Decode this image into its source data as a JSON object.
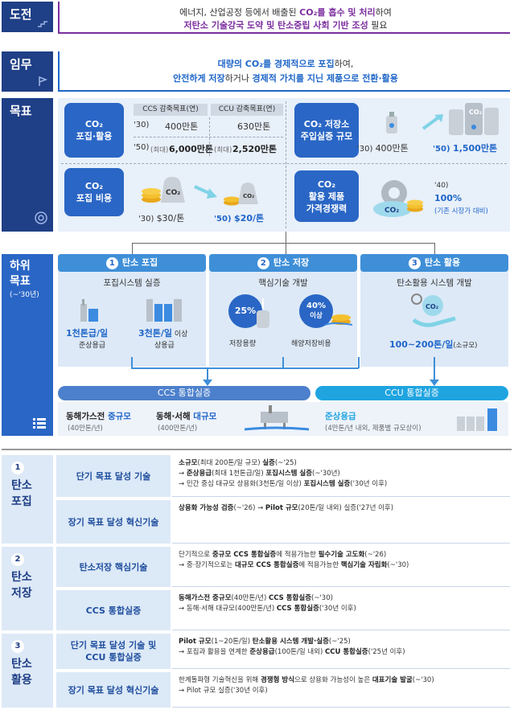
{
  "challenge": {
    "label": "도전",
    "line1_pre": "에너지, 산업공정 등에서 배출된 ",
    "line1_hl": "CO₂를 흡수 및 처리",
    "line1_post": "하여",
    "line2_hl": "저탄소 기술강국 도약 및 탄소중립 사회 기반 조성",
    "line2_post": " 필요"
  },
  "mission": {
    "label": "임무",
    "line1_hl": "대량의 CO₂를 경제적으로 포집",
    "line1_post": "하여,",
    "line2_a": "안전하게 저장",
    "line2_b": "하거나 ",
    "line2_c": "경제적 가치를 지닌 제품으로 전환·활용"
  },
  "goals": {
    "label": "목표",
    "capture": {
      "title1": "CO₂",
      "title2": "포집·활용",
      "ccs_header": "CCS 감축목표(연)",
      "ccu_header": "CCU 감축목표(연)",
      "row1_year": "'30)",
      "row1_ccs": "400만톤",
      "row1_ccu": "630만톤",
      "row2_year": "'50)",
      "row2_ccs_note": "(최대)",
      "row2_ccs": "6,000만톤",
      "row2_ccu_note": "(최대)",
      "row2_ccu": "2,520만톤"
    },
    "storage": {
      "title1": "CO₂ 저장소",
      "title2": "주입실증 규모",
      "v1_year": "'30)",
      "v1": "400만톤",
      "v2_year": "'50)",
      "v2": "1,500만톤"
    },
    "cost": {
      "title1": "CO₂",
      "title2": "포집 비용",
      "v1_year": "'30)",
      "v1": "$30/톤",
      "v2_year": "'50)",
      "v2": "$20/톤"
    },
    "product": {
      "title1": "CO₂",
      "title2": "활용 제품",
      "title3": "가격경쟁력",
      "year": "'40)",
      "value": "100%",
      "note": "(기존 시장가 대비)"
    },
    "co2_icon": "CO₂"
  },
  "subgoals": {
    "label1": "하위",
    "label2": "목표",
    "label3": "(~'30년)",
    "capture": {
      "num": "1",
      "title": "탄소 포집",
      "subtitle": "포집시스템 실증",
      "a_value": "1천톤급/일",
      "a_label": "준상용급",
      "b_value": "3천톤/일",
      "b_suffix": " 이상",
      "b_label": "상용급"
    },
    "storage": {
      "num": "2",
      "title": "탄소 저장",
      "subtitle": "핵심기술 개발",
      "a_value": "25%",
      "a_label": "저장용량",
      "b_value": "40%",
      "b_suffix": "이상",
      "b_label": "해양저장비용"
    },
    "utilization": {
      "num": "3",
      "title": "탄소 활용",
      "subtitle": "탄소활용 시스템 개발",
      "value": "100~200톤/일",
      "value_note": "(소규모)"
    },
    "ccs_demo": {
      "title": "CCS 통합실증",
      "a_pre": "동해가스전 ",
      "a_hl": "중규모",
      "a_note": "(40만톤/년)",
      "b_pre": "동해·서해 ",
      "b_hl": "대규모",
      "b_note": "(400만톤/년)"
    },
    "ccu_demo": {
      "title": "CCU 통합실증",
      "a_hl": "준상용급",
      "a_note": "(4만톤/년 내외, 제품별 규모상이)"
    }
  },
  "details": [
    {
      "num": "1",
      "name1": "탄소",
      "name2": "포집",
      "rows": [
        {
          "title": "단기 목표 달성 기술",
          "lines": [
            {
              "pre": "",
              "b1": "소규모",
              "mid": "(최대 200톤/일 규모) ",
              "b2": "실증",
              "post": "(~'25)"
            },
            {
              "pre": "→ ",
              "b1": "준상용급",
              "mid": "(최대 1천톤급/일) ",
              "b2": "포집시스템 실증",
              "post": "(~'30년)"
            },
            {
              "pre": "→ 민간 중심 대규모 상용화",
              "b1": "",
              "mid": "(3천톤/일 이상) ",
              "b2": "포집시스템 실증",
              "post": "('30년 이후)"
            }
          ]
        },
        {
          "title": "장기 목표 달성 혁신기술",
          "lines": [
            {
              "pre": "",
              "b1": "상용화 가능성 검증",
              "mid": "(~'26) → ",
              "b2": "Pilot 규모",
              "post": "(20톤/일 내외) 실증('27년 이후)"
            }
          ]
        }
      ]
    },
    {
      "num": "2",
      "name1": "탄소",
      "name2": "저장",
      "rows": [
        {
          "title": "탄소저장 핵심기술",
          "lines": [
            {
              "pre": "단기적으로 ",
              "b1": "중규모 CCS 통합실증",
              "mid": "에 적용가능한 ",
              "b2": "필수기술 고도화",
              "post": "(~'26)"
            },
            {
              "pre": "→ 중·장기적으로는 ",
              "b1": "대규모 CCS 통합실증",
              "mid": "에 적용가능한 ",
              "b2": "핵심기술 자립화",
              "post": "(~'30)"
            }
          ]
        },
        {
          "title": "CCS 통합실증",
          "lines": [
            {
              "pre": "",
              "b1": "동해가스전 중규모",
              "mid": "(40만톤/년) ",
              "b2": "CCS 통합실증",
              "post": "(~'30)"
            },
            {
              "pre": "→ 동해·서해 대규모",
              "b1": "",
              "mid": "(400만톤/년) ",
              "b2": "CCS 통합실증",
              "post": "('30년 이후)"
            }
          ]
        }
      ]
    },
    {
      "num": "3",
      "name1": "탄소",
      "name2": "활용",
      "rows": [
        {
          "title": "단기 목표 달성 기술 및\nCCU 통합실증",
          "lines": [
            {
              "pre": "",
              "b1": "Pilot 규모",
              "mid": "(1~20톤/일) ",
              "b2": "탄소활용 시스템 개발·실증",
              "post": "(~'25)"
            },
            {
              "pre": "→ 포집과 활용을 연계한 ",
              "b1": "준상용급",
              "mid": "(100톤/일 내외) ",
              "b2": "CCU 통합실증",
              "post": "('25년 이후)"
            }
          ]
        },
        {
          "title": "장기 목표 달성 혁신기술",
          "lines": [
            {
              "pre": "한계돌파형 기술혁신을 위해 ",
              "b1": "경쟁형 방식",
              "mid": "으로 상용화 가능성이 높은 ",
              "b2": "대표기술 발굴",
              "post": "(~'30)"
            },
            {
              "pre": "→ Pilot 규모 실증",
              "b1": "",
              "mid": "",
              "b2": "",
              "post": "('30년 이후)"
            }
          ]
        }
      ]
    }
  ]
}
